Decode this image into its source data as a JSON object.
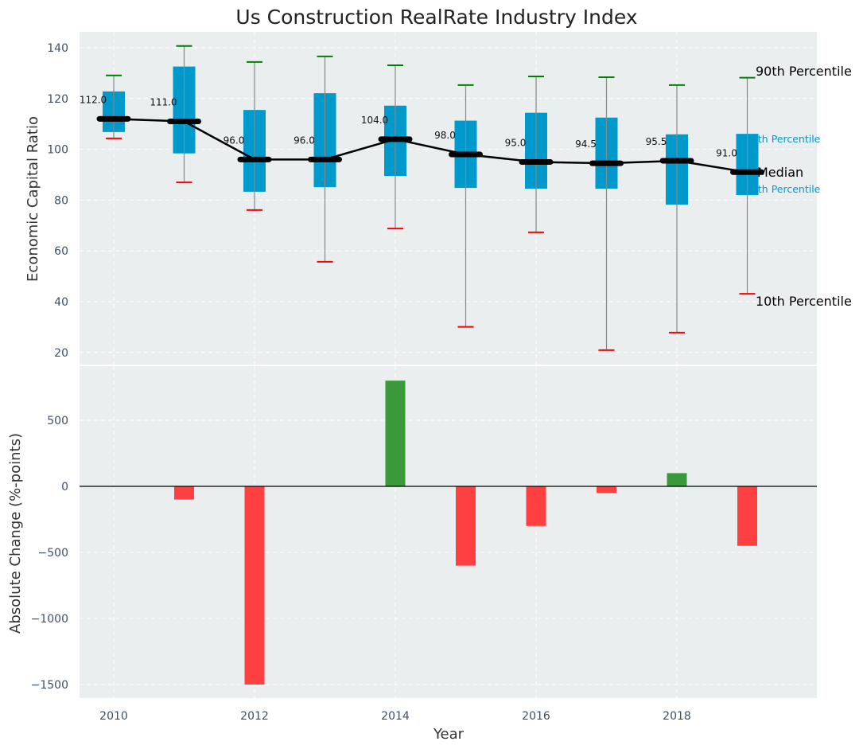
{
  "chart_data": [
    {
      "type": "box",
      "title": "Us Construction RealRate Industry Index",
      "xlabel": "",
      "ylabel": "Economic Capital Ratio",
      "ylim": [
        15,
        146
      ],
      "yticks": [
        20,
        40,
        60,
        80,
        100,
        120,
        140
      ],
      "grid": true,
      "x": [
        2010,
        2011,
        2012,
        2013,
        2014,
        2015,
        2016,
        2017,
        2018,
        2019
      ],
      "series": [
        {
          "name": "90th Percentile",
          "values": [
            129.1,
            140.7,
            134.4,
            136.6,
            133.1,
            125.3,
            128.7,
            128.4,
            125.3,
            128.2
          ]
        },
        {
          "name": "75th Percentile",
          "values": [
            122.8,
            132.6,
            115.5,
            122.1,
            117.2,
            111.3,
            114.4,
            112.5,
            105.9,
            106.1
          ]
        },
        {
          "name": "Median",
          "values": [
            112.0,
            111.0,
            96.0,
            96.0,
            104.0,
            98.0,
            95.0,
            94.5,
            95.5,
            91.0
          ]
        },
        {
          "name": "25th Percentile",
          "values": [
            106.8,
            98.4,
            83.3,
            85.1,
            89.5,
            84.8,
            84.5,
            84.5,
            78.2,
            82.0
          ]
        },
        {
          "name": "10th Percentile",
          "values": [
            104.3,
            87.0,
            76.1,
            55.7,
            68.8,
            30.1,
            67.3,
            20.9,
            27.8,
            43.1
          ]
        }
      ],
      "median_labels": [
        "112.0",
        "111.0",
        "96.0",
        "96.0",
        "104.0",
        "98.0",
        "95.0",
        "94.5",
        "95.5",
        "91.0"
      ],
      "annotations": {
        "p90": "90th Percentile",
        "p75": "75th Percentile",
        "median": "Median",
        "p25": "25th Percentile",
        "p10": "10th Percentile"
      },
      "colors": {
        "box": "#0099cc",
        "p90_cap": "#008000",
        "p10_cap": "#ff0000",
        "median": "#000000",
        "whisker": "#888888"
      }
    },
    {
      "type": "bar",
      "title": "",
      "xlabel": "Year",
      "ylabel": "Absolute Change (%-points)",
      "ylim": [
        -1602,
        910
      ],
      "yticks": [
        500,
        0,
        -500,
        -1000,
        -1500
      ],
      "ytick_labels": [
        "500",
        "0",
        "−500",
        "−1000",
        "−1500"
      ],
      "xlim": [
        2009.5,
        2020
      ],
      "xticks": [
        2010,
        2012,
        2014,
        2016,
        2018
      ],
      "xtick_labels": [
        "2010",
        "2012",
        "2014",
        "2016",
        "2018"
      ],
      "grid": true,
      "categories": [
        2010,
        2011,
        2012,
        2013,
        2014,
        2015,
        2016,
        2017,
        2018,
        2019
      ],
      "values": [
        0,
        -100,
        -1500,
        0,
        800,
        -600,
        -300,
        -50,
        100,
        -450
      ],
      "colors": {
        "positive": "#3a9a3a",
        "negative": "#ff4040"
      }
    }
  ]
}
